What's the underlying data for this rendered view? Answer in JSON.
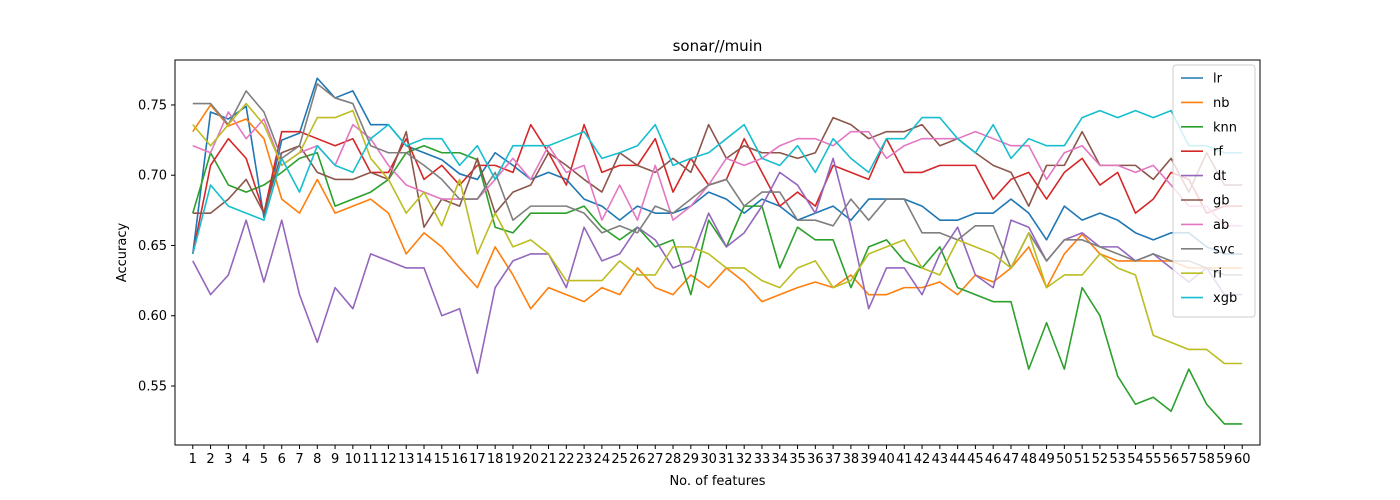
{
  "chart_data": {
    "type": "line",
    "title": "sonar//muin",
    "xlabel": "No. of features",
    "ylabel": "Accuracy",
    "x": [
      1,
      2,
      3,
      4,
      5,
      6,
      7,
      8,
      9,
      10,
      11,
      12,
      13,
      14,
      15,
      16,
      17,
      18,
      19,
      20,
      21,
      22,
      23,
      24,
      25,
      26,
      27,
      28,
      29,
      30,
      31,
      32,
      33,
      34,
      35,
      36,
      37,
      38,
      39,
      40,
      41,
      42,
      43,
      44,
      45,
      46,
      47,
      48,
      49,
      50,
      51,
      52,
      53,
      54,
      55,
      56,
      57,
      58,
      59,
      60
    ],
    "xlim": [
      0,
      61
    ],
    "ylim": [
      0.508,
      0.782
    ],
    "yticks": [
      0.55,
      0.6,
      0.65,
      0.7,
      0.75
    ],
    "ytick_labels": [
      "0.55",
      "0.60",
      "0.65",
      "0.70",
      "0.75"
    ],
    "grid": false,
    "legend_position": "top-right",
    "series": [
      {
        "name": "lr",
        "color": "#1f77b4",
        "values": [
          0.644,
          0.745,
          0.74,
          0.749,
          0.67,
          0.725,
          0.73,
          0.769,
          0.755,
          0.76,
          0.736,
          0.736,
          0.721,
          0.716,
          0.711,
          0.701,
          0.697,
          0.716,
          0.707,
          0.697,
          0.702,
          0.697,
          0.683,
          0.678,
          0.668,
          0.678,
          0.673,
          0.673,
          0.678,
          0.688,
          0.683,
          0.673,
          0.683,
          0.678,
          0.668,
          0.673,
          0.678,
          0.668,
          0.683,
          0.683,
          0.683,
          0.678,
          0.668,
          0.668,
          0.673,
          0.673,
          0.683,
          0.673,
          0.654,
          0.678,
          0.668,
          0.673,
          0.668,
          0.659,
          0.654,
          0.659,
          0.659,
          0.649,
          0.644,
          0.644
        ]
      },
      {
        "name": "nb",
        "color": "#ff7f0e",
        "values": [
          0.731,
          0.75,
          0.735,
          0.74,
          0.726,
          0.683,
          0.673,
          0.697,
          0.673,
          0.678,
          0.683,
          0.673,
          0.644,
          0.659,
          0.649,
          0.634,
          0.62,
          0.649,
          0.629,
          0.605,
          0.62,
          0.615,
          0.61,
          0.62,
          0.615,
          0.634,
          0.62,
          0.615,
          0.629,
          0.62,
          0.634,
          0.624,
          0.61,
          0.615,
          0.62,
          0.624,
          0.62,
          0.629,
          0.615,
          0.615,
          0.62,
          0.62,
          0.624,
          0.615,
          0.629,
          0.624,
          0.634,
          0.649,
          0.62,
          0.644,
          0.658,
          0.644,
          0.639,
          0.639,
          0.639,
          0.639,
          0.634,
          0.634,
          0.634,
          0.634
        ]
      },
      {
        "name": "knn",
        "color": "#2ca02c",
        "values": [
          0.673,
          0.716,
          0.693,
          0.688,
          0.693,
          0.702,
          0.712,
          0.716,
          0.678,
          0.683,
          0.688,
          0.697,
          0.716,
          0.721,
          0.716,
          0.716,
          0.711,
          0.663,
          0.659,
          0.673,
          0.673,
          0.673,
          0.678,
          0.663,
          0.654,
          0.663,
          0.649,
          0.654,
          0.615,
          0.668,
          0.649,
          0.678,
          0.678,
          0.634,
          0.663,
          0.654,
          0.654,
          0.62,
          0.649,
          0.654,
          0.639,
          0.634,
          0.649,
          0.62,
          0.615,
          0.61,
          0.61,
          0.562,
          0.595,
          0.562,
          0.62,
          0.6,
          0.557,
          0.537,
          0.542,
          0.532,
          0.562,
          0.537,
          0.523,
          0.523
        ]
      },
      {
        "name": "rf",
        "color": "#d62728",
        "values": [
          0.644,
          0.707,
          0.726,
          0.712,
          0.673,
          0.731,
          0.731,
          0.726,
          0.721,
          0.726,
          0.702,
          0.702,
          0.726,
          0.697,
          0.707,
          0.693,
          0.707,
          0.707,
          0.702,
          0.736,
          0.716,
          0.693,
          0.736,
          0.702,
          0.707,
          0.707,
          0.726,
          0.688,
          0.712,
          0.693,
          0.697,
          0.726,
          0.702,
          0.678,
          0.688,
          0.678,
          0.707,
          0.702,
          0.697,
          0.726,
          0.702,
          0.702,
          0.707,
          0.707,
          0.707,
          0.683,
          0.697,
          0.702,
          0.683,
          0.702,
          0.712,
          0.693,
          0.702,
          0.673,
          0.683,
          0.702,
          0.697,
          0.673,
          0.678,
          0.678
        ]
      },
      {
        "name": "dt",
        "color": "#9467bd",
        "values": [
          0.639,
          0.615,
          0.629,
          0.668,
          0.624,
          0.668,
          0.615,
          0.581,
          0.62,
          0.605,
          0.644,
          0.639,
          0.634,
          0.634,
          0.6,
          0.605,
          0.559,
          0.62,
          0.639,
          0.644,
          0.644,
          0.62,
          0.663,
          0.639,
          0.644,
          0.663,
          0.654,
          0.634,
          0.639,
          0.673,
          0.649,
          0.659,
          0.678,
          0.702,
          0.693,
          0.673,
          0.712,
          0.663,
          0.605,
          0.634,
          0.634,
          0.615,
          0.644,
          0.663,
          0.629,
          0.62,
          0.668,
          0.663,
          0.639,
          0.654,
          0.659,
          0.649,
          0.649,
          0.639,
          0.644,
          0.634,
          0.624,
          0.634,
          0.615,
          0.615
        ]
      },
      {
        "name": "gb",
        "color": "#8c564b",
        "values": [
          0.673,
          0.673,
          0.683,
          0.697,
          0.673,
          0.716,
          0.721,
          0.702,
          0.697,
          0.697,
          0.702,
          0.697,
          0.731,
          0.663,
          0.683,
          0.678,
          0.712,
          0.673,
          0.688,
          0.693,
          0.716,
          0.707,
          0.697,
          0.688,
          0.716,
          0.707,
          0.702,
          0.712,
          0.702,
          0.736,
          0.712,
          0.721,
          0.716,
          0.716,
          0.712,
          0.716,
          0.741,
          0.736,
          0.726,
          0.731,
          0.731,
          0.736,
          0.721,
          0.726,
          0.716,
          0.707,
          0.702,
          0.678,
          0.707,
          0.707,
          0.731,
          0.707,
          0.707,
          0.707,
          0.697,
          0.712,
          0.688,
          0.716,
          0.693,
          0.693
        ]
      },
      {
        "name": "ab",
        "color": "#e377c2",
        "values": [
          0.721,
          0.716,
          0.745,
          0.726,
          0.74,
          0.707,
          0.716,
          0.721,
          0.707,
          0.736,
          0.726,
          0.707,
          0.693,
          0.688,
          0.683,
          0.683,
          0.683,
          0.697,
          0.712,
          0.697,
          0.721,
          0.702,
          0.707,
          0.668,
          0.693,
          0.668,
          0.707,
          0.668,
          0.678,
          0.693,
          0.712,
          0.707,
          0.712,
          0.721,
          0.726,
          0.726,
          0.721,
          0.731,
          0.731,
          0.712,
          0.721,
          0.726,
          0.726,
          0.726,
          0.731,
          0.726,
          0.721,
          0.721,
          0.697,
          0.716,
          0.721,
          0.707,
          0.707,
          0.702,
          0.707,
          0.693,
          0.678,
          0.678,
          0.664,
          0.664
        ]
      },
      {
        "name": "svc",
        "color": "#7f7f7f",
        "values": [
          0.751,
          0.751,
          0.736,
          0.76,
          0.745,
          0.712,
          0.721,
          0.765,
          0.755,
          0.751,
          0.721,
          0.716,
          0.716,
          0.707,
          0.697,
          0.683,
          0.683,
          0.702,
          0.668,
          0.678,
          0.678,
          0.678,
          0.673,
          0.659,
          0.664,
          0.659,
          0.678,
          0.673,
          0.683,
          0.693,
          0.697,
          0.678,
          0.688,
          0.688,
          0.668,
          0.668,
          0.664,
          0.683,
          0.668,
          0.683,
          0.683,
          0.659,
          0.659,
          0.654,
          0.664,
          0.664,
          0.634,
          0.659,
          0.639,
          0.654,
          0.654,
          0.649,
          0.644,
          0.639,
          0.644,
          0.639,
          0.639,
          0.634,
          0.629,
          0.629
        ]
      },
      {
        "name": "ri",
        "color": "#bcbd22",
        "values": [
          0.736,
          0.721,
          0.736,
          0.751,
          0.736,
          0.707,
          0.716,
          0.741,
          0.741,
          0.746,
          0.712,
          0.697,
          0.673,
          0.688,
          0.664,
          0.697,
          0.644,
          0.673,
          0.649,
          0.654,
          0.644,
          0.625,
          0.625,
          0.625,
          0.639,
          0.629,
          0.629,
          0.649,
          0.649,
          0.644,
          0.634,
          0.634,
          0.625,
          0.62,
          0.634,
          0.639,
          0.62,
          0.625,
          0.644,
          0.649,
          0.654,
          0.634,
          0.629,
          0.654,
          0.649,
          0.644,
          0.634,
          0.659,
          0.62,
          0.629,
          0.629,
          0.644,
          0.634,
          0.629,
          0.586,
          0.581,
          0.576,
          0.576,
          0.566,
          0.566
        ]
      },
      {
        "name": "xgb",
        "color": "#17becf",
        "values": [
          0.644,
          0.693,
          0.678,
          0.673,
          0.668,
          0.712,
          0.688,
          0.721,
          0.707,
          0.702,
          0.726,
          0.736,
          0.721,
          0.726,
          0.726,
          0.707,
          0.721,
          0.697,
          0.721,
          0.721,
          0.721,
          0.726,
          0.731,
          0.712,
          0.716,
          0.721,
          0.736,
          0.707,
          0.712,
          0.716,
          0.726,
          0.736,
          0.712,
          0.707,
          0.721,
          0.702,
          0.726,
          0.712,
          0.702,
          0.726,
          0.726,
          0.741,
          0.741,
          0.726,
          0.716,
          0.736,
          0.712,
          0.726,
          0.721,
          0.721,
          0.741,
          0.746,
          0.741,
          0.746,
          0.741,
          0.746,
          0.721,
          0.721,
          0.716,
          0.716
        ]
      }
    ]
  }
}
